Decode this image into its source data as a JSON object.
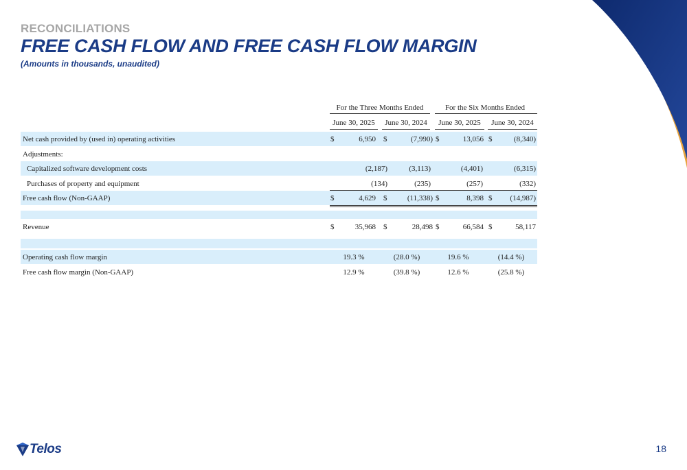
{
  "kicker": "RECONCILIATIONS",
  "title": "FREE CASH FLOW AND FREE CASH FLOW MARGIN",
  "subtitle": "(Amounts in thousands, unaudited)",
  "periods": [
    "For the Three Months Ended",
    "For the Six Months Ended"
  ],
  "columns": [
    "June 30, 2025",
    "June 30, 2024",
    "June 30, 2025",
    "June 30, 2024"
  ],
  "rows": [
    {
      "label": "Net cash provided by (used in) operating activities",
      "cur": [
        "$",
        "$",
        "$",
        "$"
      ],
      "values": [
        "6,950",
        "(7,990)",
        "13,056",
        "(8,340)"
      ]
    },
    {
      "label": "Adjustments:",
      "cur": [
        "",
        "",
        "",
        ""
      ],
      "values": [
        "",
        "",
        "",
        ""
      ]
    },
    {
      "label": "Capitalized software development costs",
      "cur": [
        "",
        "",
        "",
        ""
      ],
      "values": [
        "(2,187)",
        "(3,113)",
        "(4,401)",
        "(6,315)"
      ]
    },
    {
      "label": "Purchases of property and equipment",
      "cur": [
        "",
        "",
        "",
        ""
      ],
      "values": [
        "(134)",
        "(235)",
        "(257)",
        "(332)"
      ]
    },
    {
      "label": "Free cash flow (Non-GAAP)",
      "cur": [
        "$",
        "$",
        "$",
        "$"
      ],
      "values": [
        "4,629",
        "(11,338)",
        "8,398",
        "(14,987)"
      ]
    },
    {
      "label": "Revenue",
      "cur": [
        "$",
        "$",
        "$",
        "$"
      ],
      "values": [
        "35,968",
        "28,498",
        "66,584",
        "58,117"
      ]
    },
    {
      "label": "Operating cash flow margin",
      "cur": [
        "",
        "",
        "",
        ""
      ],
      "values": [
        "19.3 %",
        "(28.0 %)",
        "19.6 %",
        "(14.4 %)"
      ]
    },
    {
      "label": "Free cash flow margin (Non-GAAP)",
      "cur": [
        "",
        "",
        "",
        ""
      ],
      "values": [
        "12.9 %",
        "(39.8 %)",
        "12.6 %",
        "(25.8 %)"
      ]
    }
  ],
  "logo": "Telos",
  "page_number": "18",
  "colors": {
    "brand_navy": "#1a3b86",
    "row_shade": "#d9eefb",
    "kicker_gray": "#a6a6a6",
    "accent_gold": "#e8a33c"
  }
}
